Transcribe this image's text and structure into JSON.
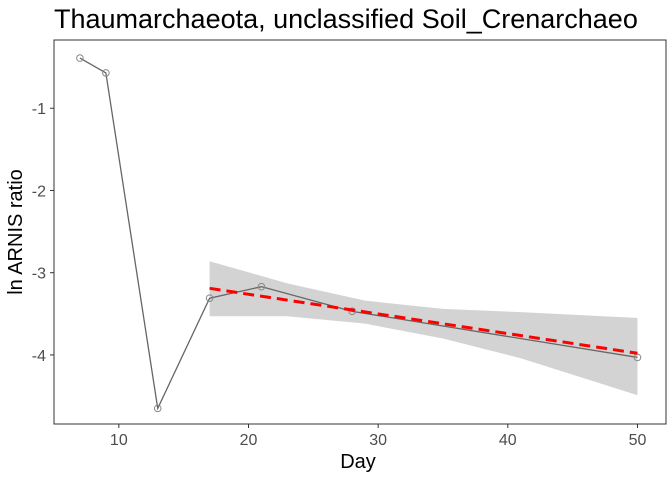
{
  "chart_data": {
    "type": "line",
    "title": "Thaumarchaeota, unclassified Soil_Crenarchaeo",
    "x_label": "Day",
    "y_label": "ln ARNIS ratio",
    "x": [
      7,
      9,
      13,
      17,
      21,
      28,
      50
    ],
    "values": [
      -0.39,
      -0.57,
      -4.65,
      -3.31,
      -3.17,
      -3.47,
      -4.03
    ],
    "color": "#666666",
    "trend": {
      "x": [
        17,
        50
      ],
      "values": [
        -3.19,
        -3.98
      ],
      "color": "#ff0000"
    },
    "band": {
      "x": [
        17,
        23,
        29,
        35,
        41,
        50
      ],
      "lower": [
        -3.53,
        -3.53,
        -3.62,
        -3.8,
        -4.04,
        -4.49
      ],
      "upper": [
        -2.86,
        -3.13,
        -3.34,
        -3.44,
        -3.48,
        -3.55
      ],
      "color": "#d3d3d3"
    },
    "xlim": [
      5,
      52.2
    ],
    "xticks": [
      10,
      20,
      30,
      40,
      50
    ],
    "ylim": [
      -4.84,
      -0.17
    ],
    "yticks": [
      -4,
      -3,
      -2,
      -1
    ]
  }
}
